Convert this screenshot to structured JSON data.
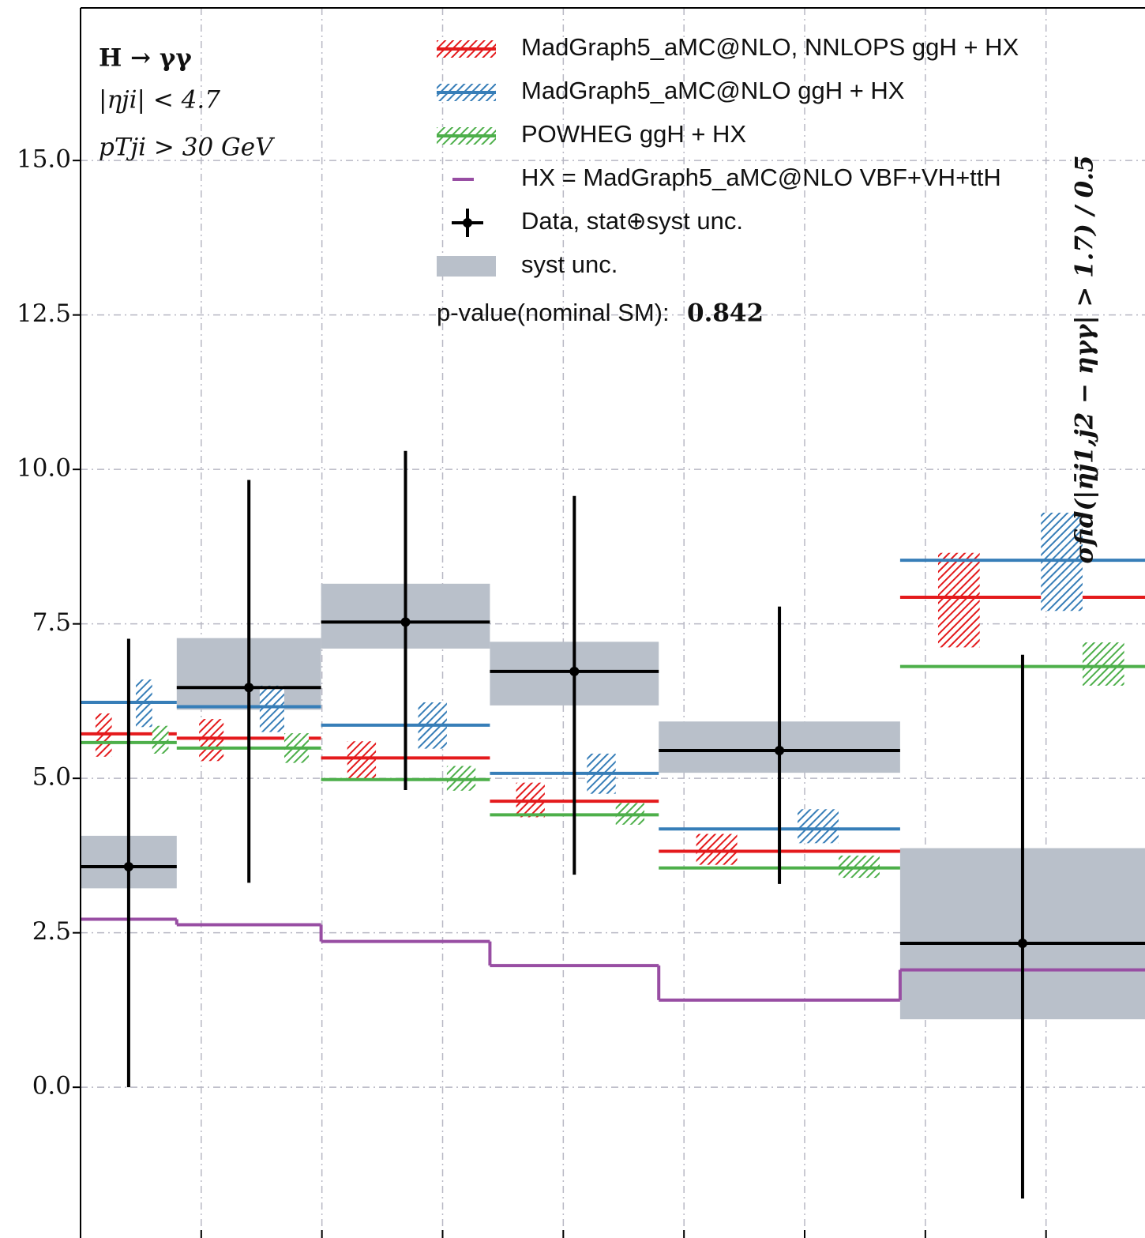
{
  "chart_data": {
    "type": "step",
    "annotations": [
      "H → γγ",
      "|ηji| < 4.7",
      "pTji > 30 GeV"
    ],
    "pvalue_label": "p-value(nominal SM):",
    "pvalue": 0.842,
    "ylabel": "σfid(|η̄j1,j2 − ηγγ| > 1.7) / 0.5",
    "bin_edges": [
      0,
      0.797,
      1.993,
      3.392,
      4.791,
      6.791,
      8.82
    ],
    "xlim": [
      0,
      8.82
    ],
    "xticks": [
      1,
      2,
      3,
      4,
      5,
      6,
      7,
      8
    ],
    "ylim": [
      -2.44,
      17.47
    ],
    "yticks": [
      {
        "value": 0,
        "label": "0.0"
      },
      2.5,
      {
        "value": 5,
        "label": "5.0"
      },
      7.5,
      {
        "value": 10,
        "label": "10.0"
      },
      12.5,
      {
        "value": 15,
        "label": "15.0"
      }
    ],
    "grid": true,
    "series": [
      {
        "name": "MadGraph5_aMC@NLO, NNLOPS ggH + HX",
        "color": "#e41a1c",
        "values": [
          5.72,
          5.65,
          5.33,
          4.63,
          3.82,
          7.93
        ],
        "band_low": [
          5.35,
          5.28,
          4.98,
          4.37,
          3.6,
          7.12
        ],
        "band_high": [
          6.05,
          5.96,
          5.6,
          4.93,
          4.1,
          8.65
        ]
      },
      {
        "name": "MadGraph5_aMC@NLO ggH + HX",
        "color": "#377eb8",
        "values": [
          6.23,
          6.16,
          5.86,
          5.08,
          4.18,
          8.53
        ],
        "band_low": [
          5.83,
          5.75,
          5.48,
          4.75,
          3.95,
          7.71
        ],
        "band_high": [
          6.6,
          6.5,
          6.23,
          5.4,
          4.5,
          9.3
        ]
      },
      {
        "name": "POWHEG ggH + HX",
        "color": "#4daf4a",
        "values": [
          5.58,
          5.49,
          4.98,
          4.41,
          3.55,
          6.81
        ],
        "band_low": [
          5.4,
          5.25,
          4.8,
          4.25,
          3.39,
          6.5
        ],
        "band_high": [
          5.85,
          5.73,
          5.2,
          4.6,
          3.75,
          7.2
        ]
      }
    ],
    "hx": {
      "name": "HX = MadGraph5_aMC@NLO VBF+VH+ttH",
      "color": "#984ea3",
      "values": [
        2.72,
        2.63,
        2.36,
        1.97,
        1.41,
        1.9
      ]
    },
    "data": {
      "name": "Data, stat⊕syst unc.",
      "color": "#000000",
      "values": [
        3.57,
        6.47,
        7.53,
        6.73,
        5.45,
        2.33
      ],
      "total_low": [
        0,
        3.31,
        4.81,
        3.44,
        3.29,
        -1.8
      ],
      "total_high": [
        7.26,
        9.83,
        10.3,
        9.57,
        7.78,
        7.0
      ]
    },
    "syst": {
      "name": "syst unc.",
      "color": "#b9c0ca",
      "low": [
        3.22,
        6.11,
        7.1,
        6.18,
        5.09,
        1.1
      ],
      "high": [
        4.07,
        7.27,
        8.15,
        7.21,
        5.92,
        3.87
      ]
    }
  }
}
